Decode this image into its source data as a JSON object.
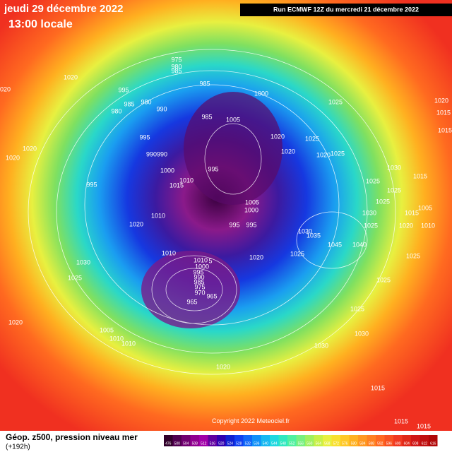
{
  "header": {
    "date": "jeudi 29 décembre 2022",
    "time": "13:00 locale",
    "run": "Run ECMWF 12Z du mercredi 21 décembre 2022"
  },
  "footer": {
    "title": "Géop. z500, pression niveau mer",
    "lead": "(+192h)",
    "copyright": "Copyright 2022 Meteociel.fr"
  },
  "scale": [
    "476",
    "500",
    "504",
    "508",
    "512",
    "516",
    "520",
    "524",
    "528",
    "532",
    "536",
    "540",
    "544",
    "548",
    "552",
    "556",
    "560",
    "564",
    "568",
    "572",
    "576",
    "580",
    "584",
    "588",
    "592",
    "596",
    "600",
    "604",
    "608",
    "612",
    "616"
  ],
  "pressure_labels": [
    "1020",
    "995",
    "975",
    "980",
    "985",
    "985",
    "980",
    "980",
    "990",
    "985",
    "1000",
    "985",
    "1005",
    "995",
    "990990",
    "1020",
    "1020",
    "1025",
    "1025",
    "1020",
    "1025",
    "1020",
    "1020",
    "1000",
    "995",
    "1010",
    "1015",
    "995",
    "1030",
    "1015",
    "1025",
    "1025",
    "1025",
    "1005",
    "1000",
    "1005",
    "1015",
    "1030",
    "1020",
    "1010",
    "1020",
    "1010",
    "995",
    "995",
    "1030",
    "1035",
    "1025",
    "1045",
    "1040",
    "1010",
    "1020",
    "1025",
    "1025",
    "1030",
    "1025",
    "1010",
    "5",
    "1000",
    "995",
    "990",
    "985",
    "975",
    "970",
    "965",
    "965",
    "1025",
    "1025",
    "1030",
    "1030",
    "1020",
    "1005",
    "1010",
    "1010",
    "1020",
    "1015",
    "1015",
    "1020",
    "1015",
    "1015",
    "1020",
    "1015"
  ]
}
